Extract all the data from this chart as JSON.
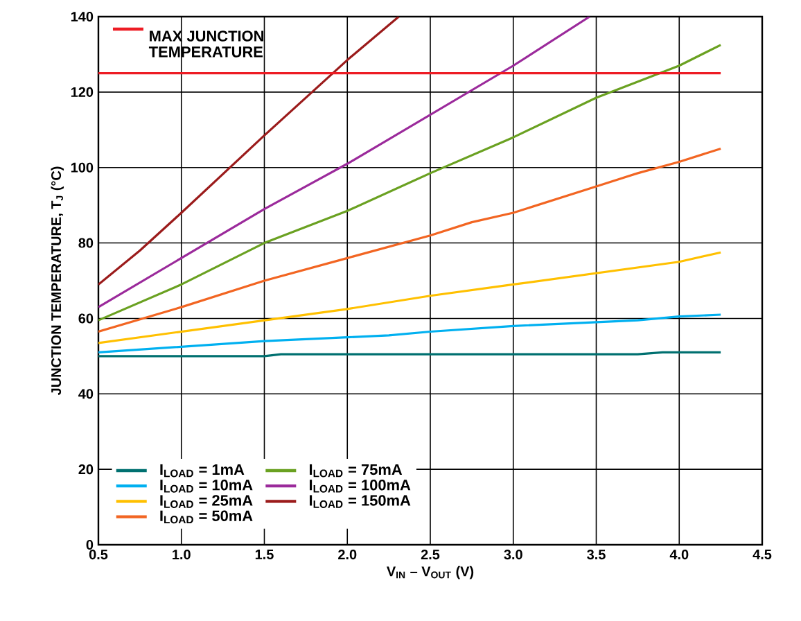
{
  "chart_data": {
    "type": "line",
    "xlabel": "V$_{IN}$ – V$_{OUT}$ (V)",
    "ylabel": "JUNCTION TEMPERATURE, T$_{J}$ (°C)",
    "xlim": [
      0.5,
      4.5
    ],
    "ylim": [
      0,
      140
    ],
    "xticks": [
      {
        "value": 0.5,
        "label": "0.5"
      },
      {
        "value": 1,
        "label": "1.0"
      },
      {
        "value": 1.5,
        "label": "1.5"
      },
      {
        "value": 2,
        "label": "2.0"
      },
      {
        "value": 2.5,
        "label": "2.5"
      },
      {
        "value": 3,
        "label": "3.0"
      },
      {
        "value": 3.5,
        "label": "3.5"
      },
      {
        "value": 4,
        "label": "4.0"
      },
      {
        "value": 4.5,
        "label": "4.5"
      }
    ],
    "yticks": [
      0,
      20,
      40,
      60,
      80,
      100,
      120,
      140
    ],
    "grid": true,
    "legend": "bottom left",
    "line_style": "solid",
    "ref_lines": [
      {
        "axis": "y",
        "value": 125,
        "label": "MAX JUNCTION TEMPERATURE",
        "color": "#ed1c24"
      }
    ],
    "series": [
      {
        "name": "I$_{LOAD}$ = 1mA",
        "color": "#007070",
        "x": [
          0.5,
          1.5,
          1.6,
          3.75,
          3.9,
          4.25
        ],
        "values": [
          50,
          50,
          50.5,
          50.5,
          51,
          51
        ]
      },
      {
        "name": "I$_{LOAD}$ = 10mA",
        "color": "#00b0f0",
        "x": [
          0.5,
          1,
          1.5,
          2,
          2.25,
          2.5,
          3,
          3.5,
          3.75,
          4,
          4.25
        ],
        "values": [
          51,
          52.5,
          54,
          55,
          55.5,
          56.5,
          58,
          59,
          59.5,
          60.5,
          61
        ]
      },
      {
        "name": "I$_{LOAD}$ = 25mA",
        "color": "#ffc000",
        "x": [
          0.5,
          1,
          1.5,
          2,
          2.5,
          3,
          3.5,
          4,
          4.25
        ],
        "values": [
          53.5,
          56.5,
          59.5,
          62.5,
          66,
          69,
          72,
          75,
          77.5
        ]
      },
      {
        "name": "I$_{LOAD}$ = 50mA",
        "color": "#f26522",
        "x": [
          0.5,
          1,
          1.5,
          2,
          2.5,
          2.75,
          3,
          3.5,
          3.75,
          4,
          4.25
        ],
        "values": [
          56.5,
          63,
          70,
          76,
          82,
          85.5,
          88,
          95,
          98.5,
          101.5,
          105
        ]
      },
      {
        "name": "I$_{LOAD}$ = 75mA",
        "color": "#6aa121",
        "x": [
          0.5,
          1,
          1.5,
          2,
          2.5,
          3,
          3.5,
          4,
          4.25
        ],
        "values": [
          59.5,
          69,
          80,
          88.5,
          98.5,
          108,
          118.5,
          127,
          132.5
        ]
      },
      {
        "name": "I$_{LOAD}$ = 100mA",
        "color": "#9b2a9b",
        "x": [
          0.5,
          1,
          1.5,
          2,
          2.5,
          3,
          3.46
        ],
        "values": [
          63,
          76,
          89,
          101,
          114,
          127,
          140
        ]
      },
      {
        "name": "I$_{LOAD}$ = 150mA",
        "color": "#9b1b1b",
        "x": [
          0.5,
          0.75,
          1,
          1.5,
          2,
          2.31
        ],
        "values": [
          69,
          78,
          88,
          108.5,
          128.5,
          140
        ]
      }
    ]
  }
}
